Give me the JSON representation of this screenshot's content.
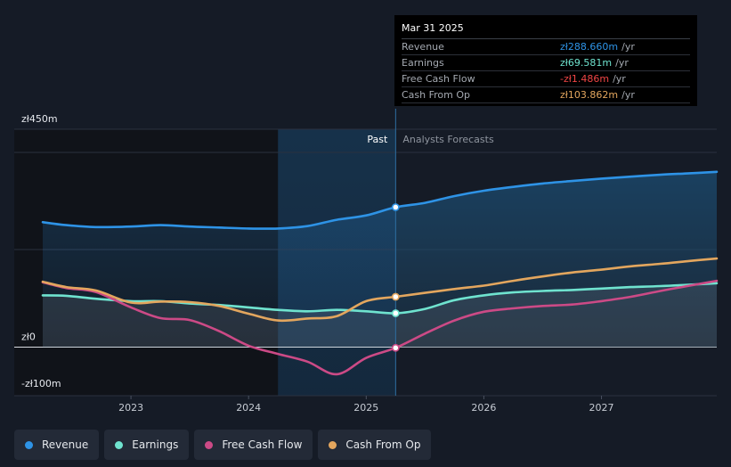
{
  "chart_data": {
    "type": "line",
    "x_range": [
      2022.25,
      2027.98
    ],
    "y_range": [
      -100,
      450
    ],
    "y_labels": [
      {
        "label": "zł450m",
        "value": 450
      },
      {
        "label": "zł0",
        "value": 0
      },
      {
        "label": "-zł100m",
        "value": -100
      }
    ],
    "x_ticks": [
      {
        "label": "2023",
        "value": 2023
      },
      {
        "label": "2024",
        "value": 2024
      },
      {
        "label": "2025",
        "value": 2025
      },
      {
        "label": "2026",
        "value": 2026
      },
      {
        "label": "2027",
        "value": 2027
      }
    ],
    "past_label": "Past",
    "forecast_label": "Analysts Forecasts",
    "past_region_start": 2024.25,
    "divider_x": 2025.25,
    "series": [
      {
        "name": "Revenue",
        "color": "#2e93e6",
        "fill": true,
        "points": [
          [
            2022.25,
            258
          ],
          [
            2022.45,
            252
          ],
          [
            2022.7,
            248
          ],
          [
            2023.0,
            249
          ],
          [
            2023.25,
            252
          ],
          [
            2023.5,
            249
          ],
          [
            2023.75,
            247
          ],
          [
            2024.0,
            245
          ],
          [
            2024.25,
            245
          ],
          [
            2024.5,
            250
          ],
          [
            2024.75,
            263
          ],
          [
            2025.0,
            272
          ],
          [
            2025.25,
            289
          ],
          [
            2025.5,
            298
          ],
          [
            2025.75,
            312
          ],
          [
            2026.0,
            323
          ],
          [
            2026.25,
            331
          ],
          [
            2026.5,
            338
          ],
          [
            2026.75,
            343
          ],
          [
            2027.0,
            348
          ],
          [
            2027.25,
            352
          ],
          [
            2027.5,
            356
          ],
          [
            2027.75,
            359
          ],
          [
            2027.98,
            362
          ]
        ]
      },
      {
        "name": "Earnings",
        "color": "#6fe3cf",
        "fill": false,
        "points": [
          [
            2022.25,
            107
          ],
          [
            2022.45,
            106
          ],
          [
            2022.7,
            100
          ],
          [
            2023.0,
            95
          ],
          [
            2023.25,
            95
          ],
          [
            2023.5,
            90
          ],
          [
            2023.75,
            87
          ],
          [
            2024.0,
            82
          ],
          [
            2024.25,
            77
          ],
          [
            2024.5,
            74
          ],
          [
            2024.75,
            77
          ],
          [
            2025.0,
            74
          ],
          [
            2025.25,
            70
          ],
          [
            2025.5,
            79
          ],
          [
            2025.75,
            97
          ],
          [
            2026.0,
            107
          ],
          [
            2026.25,
            113
          ],
          [
            2026.5,
            116
          ],
          [
            2026.75,
            118
          ],
          [
            2027.0,
            121
          ],
          [
            2027.25,
            124
          ],
          [
            2027.5,
            126
          ],
          [
            2027.75,
            129
          ],
          [
            2027.98,
            132
          ]
        ]
      },
      {
        "name": "Free Cash Flow",
        "color": "#cc4a86",
        "fill": false,
        "points": [
          [
            2022.25,
            134
          ],
          [
            2022.45,
            122
          ],
          [
            2022.7,
            114
          ],
          [
            2023.0,
            82
          ],
          [
            2023.25,
            60
          ],
          [
            2023.5,
            56
          ],
          [
            2023.75,
            33
          ],
          [
            2024.0,
            3
          ],
          [
            2024.25,
            -14
          ],
          [
            2024.5,
            -30
          ],
          [
            2024.75,
            -56
          ],
          [
            2025.0,
            -22
          ],
          [
            2025.25,
            -1.5
          ],
          [
            2025.5,
            28
          ],
          [
            2025.75,
            55
          ],
          [
            2026.0,
            73
          ],
          [
            2026.25,
            80
          ],
          [
            2026.5,
            85
          ],
          [
            2026.75,
            88
          ],
          [
            2027.0,
            95
          ],
          [
            2027.25,
            104
          ],
          [
            2027.5,
            116
          ],
          [
            2027.75,
            127
          ],
          [
            2027.98,
            137
          ]
        ]
      },
      {
        "name": "Cash From Op",
        "color": "#e3a65e",
        "fill": false,
        "points": [
          [
            2022.25,
            135
          ],
          [
            2022.45,
            124
          ],
          [
            2022.7,
            117
          ],
          [
            2023.0,
            92
          ],
          [
            2023.25,
            94
          ],
          [
            2023.5,
            93
          ],
          [
            2023.75,
            85
          ],
          [
            2024.0,
            69
          ],
          [
            2024.25,
            55
          ],
          [
            2024.5,
            59
          ],
          [
            2024.75,
            64
          ],
          [
            2025.0,
            95
          ],
          [
            2025.25,
            104
          ],
          [
            2025.5,
            112
          ],
          [
            2025.75,
            120
          ],
          [
            2026.0,
            127
          ],
          [
            2026.25,
            137
          ],
          [
            2026.5,
            146
          ],
          [
            2026.75,
            154
          ],
          [
            2027.0,
            160
          ],
          [
            2027.25,
            167
          ],
          [
            2027.5,
            172
          ],
          [
            2027.75,
            178
          ],
          [
            2027.98,
            183
          ]
        ]
      }
    ]
  },
  "tooltip": {
    "date": "Mar 31 2025",
    "rows": [
      {
        "label": "Revenue",
        "value": "zł288.660m",
        "unit": "/yr",
        "color": "#2e93e6"
      },
      {
        "label": "Earnings",
        "value": "zł69.581m",
        "unit": "/yr",
        "color": "#6fe3cf"
      },
      {
        "label": "Free Cash Flow",
        "value": "-zł1.486m",
        "unit": "/yr",
        "color": "#f04545"
      },
      {
        "label": "Cash From Op",
        "value": "zł103.862m",
        "unit": "/yr",
        "color": "#e3a65e"
      }
    ]
  },
  "legend": [
    {
      "label": "Revenue",
      "color": "#2e93e6"
    },
    {
      "label": "Earnings",
      "color": "#6fe3cf"
    },
    {
      "label": "Free Cash Flow",
      "color": "#cc4a86"
    },
    {
      "label": "Cash From Op",
      "color": "#e3a65e"
    }
  ]
}
